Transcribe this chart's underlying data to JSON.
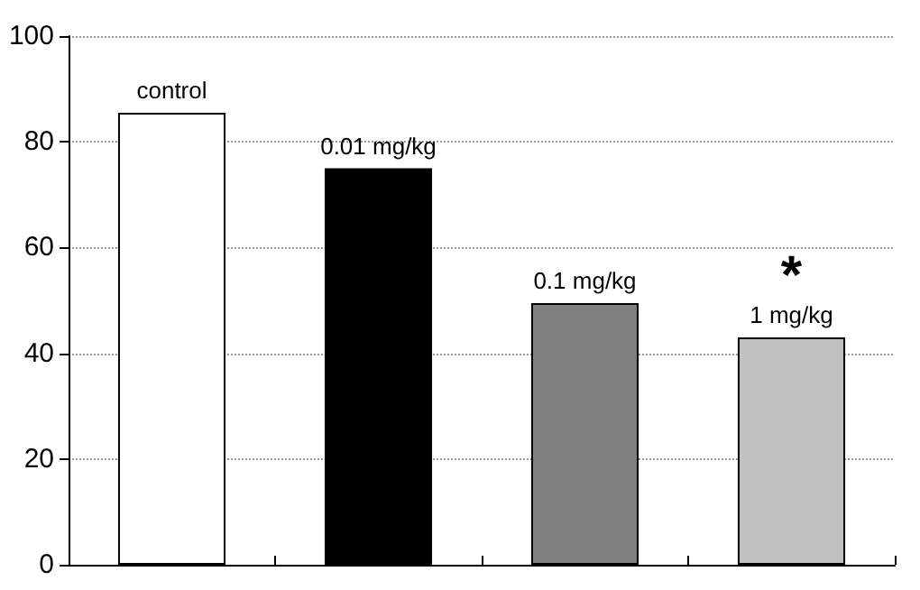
{
  "chart_data": {
    "type": "bar",
    "categories": [
      "control",
      "0.01 mg/kg",
      "0.1 mg/kg",
      "1 mg/kg"
    ],
    "values": [
      85.5,
      75,
      49.5,
      43
    ],
    "colors": [
      "#ffffff",
      "#000000",
      "#808080",
      "#c0c0c0"
    ],
    "ylim": [
      0,
      100
    ],
    "yticks": [
      0,
      20,
      40,
      60,
      80,
      100
    ],
    "grid": "y",
    "tick_labels": "y",
    "annotations": [
      {
        "text": "*",
        "x": "1 mg/kg",
        "y": 43
      }
    ]
  }
}
